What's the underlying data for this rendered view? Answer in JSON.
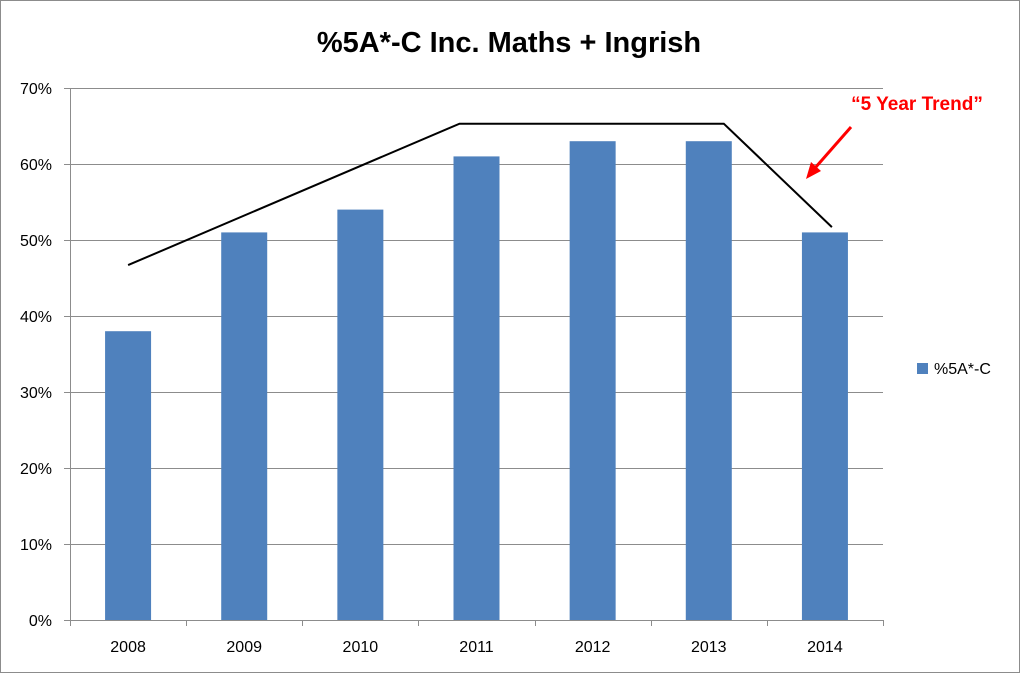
{
  "chart_data": {
    "type": "bar",
    "title": "%5A*-C Inc. Maths + Ingrish",
    "categories": [
      "2008",
      "2009",
      "2010",
      "2011",
      "2012",
      "2013",
      "2014"
    ],
    "series": [
      {
        "name": "%5A*-C",
        "values": [
          38,
          51,
          54,
          61,
          63,
          63,
          51
        ],
        "color": "#4f81bd"
      }
    ],
    "ylim": [
      0,
      70
    ],
    "yticks": [
      0,
      10,
      20,
      30,
      40,
      50,
      60,
      70
    ],
    "ytick_labels": [
      "0%",
      "10%",
      "20%",
      "30%",
      "40%",
      "50%",
      "60%",
      "70%"
    ],
    "xlabel": "",
    "ylabel": "",
    "grid": true,
    "legend": "right",
    "trend_line": {
      "points": [
        {
          "x": "2008",
          "y": 46.7
        },
        {
          "x": "2011",
          "y": 65.3
        },
        {
          "x": "2013",
          "y": 65.3
        },
        {
          "x": "2014",
          "y": 51.7
        }
      ],
      "color": "#000000"
    },
    "annotation": {
      "text": "“5 Year Trend”",
      "color": "#ff0000"
    }
  }
}
